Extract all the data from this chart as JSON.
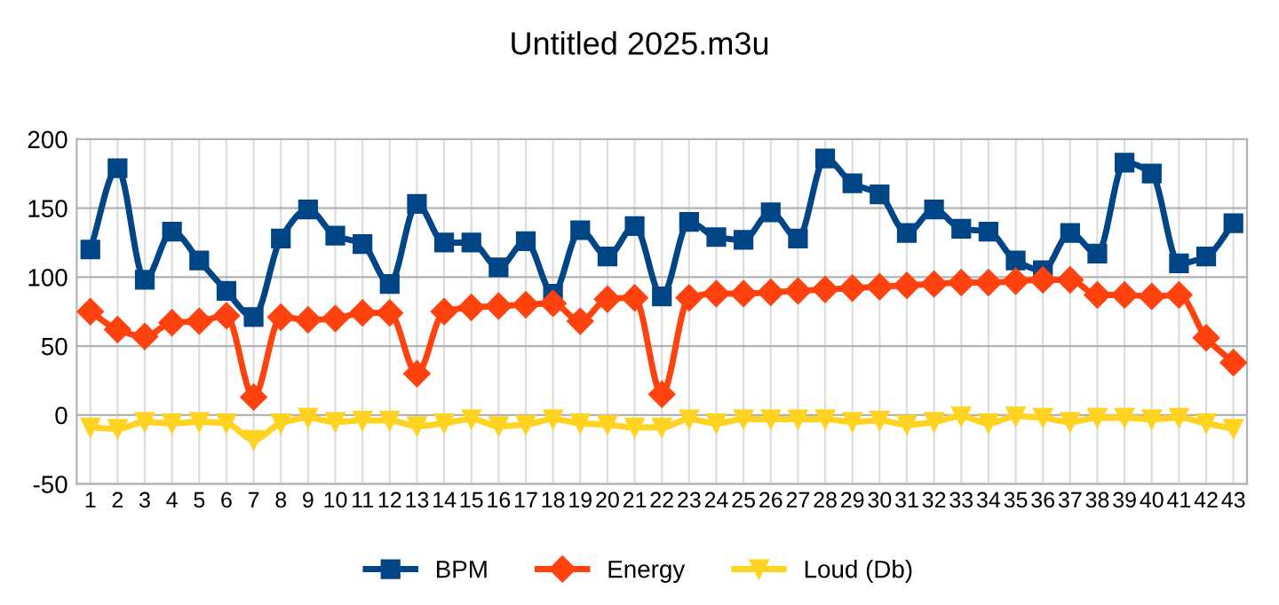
{
  "chart_data": {
    "type": "line",
    "title": "Untitled 2025.m3u",
    "categories": [
      "1",
      "2",
      "3",
      "4",
      "5",
      "6",
      "7",
      "8",
      "9",
      "10",
      "11",
      "12",
      "13",
      "14",
      "15",
      "16",
      "17",
      "18",
      "19",
      "20",
      "21",
      "22",
      "23",
      "24",
      "25",
      "26",
      "27",
      "28",
      "29",
      "30",
      "31",
      "32",
      "33",
      "34",
      "35",
      "36",
      "37",
      "38",
      "39",
      "40",
      "41",
      "42",
      "43"
    ],
    "series": [
      {
        "name": "BPM",
        "color": "#004586",
        "marker": "square",
        "values": [
          120,
          179,
          98,
          133,
          112,
          90,
          71,
          128,
          149,
          130,
          124,
          95,
          153,
          125,
          125,
          107,
          126,
          88,
          134,
          115,
          137,
          86,
          140,
          129,
          127,
          147,
          128,
          186,
          168,
          160,
          132,
          149,
          135,
          133,
          112,
          105,
          132,
          117,
          183,
          175,
          110,
          115,
          139
        ]
      },
      {
        "name": "Energy",
        "color": "#ff420e",
        "marker": "diamond",
        "values": [
          75,
          62,
          57,
          67,
          68,
          72,
          13,
          71,
          69,
          70,
          74,
          74,
          30,
          75,
          78,
          79,
          80,
          81,
          68,
          84,
          85,
          15,
          85,
          88,
          88,
          89,
          90,
          91,
          92,
          93,
          94,
          95,
          96,
          96,
          97,
          98,
          98,
          87,
          87,
          86,
          87,
          56,
          38
        ]
      },
      {
        "name": "Loud (Db)",
        "color": "#ffd320",
        "marker": "triangle",
        "values": [
          -9,
          -10,
          -5,
          -6,
          -5,
          -6,
          -18,
          -6,
          -2,
          -5,
          -4,
          -4,
          -8,
          -6,
          -3,
          -8,
          -7,
          -3,
          -6,
          -7,
          -9,
          -9,
          -3,
          -6,
          -3,
          -3,
          -3,
          -3,
          -5,
          -4,
          -7,
          -5,
          -1,
          -6,
          -1,
          -2,
          -5,
          -2,
          -2,
          -3,
          -2,
          -6,
          -10
        ]
      }
    ],
    "ylim": [
      -50,
      200
    ],
    "yticks": [
      -50,
      0,
      50,
      100,
      150,
      200
    ],
    "grid": true,
    "legend": "bottom",
    "line_style": "solid"
  }
}
